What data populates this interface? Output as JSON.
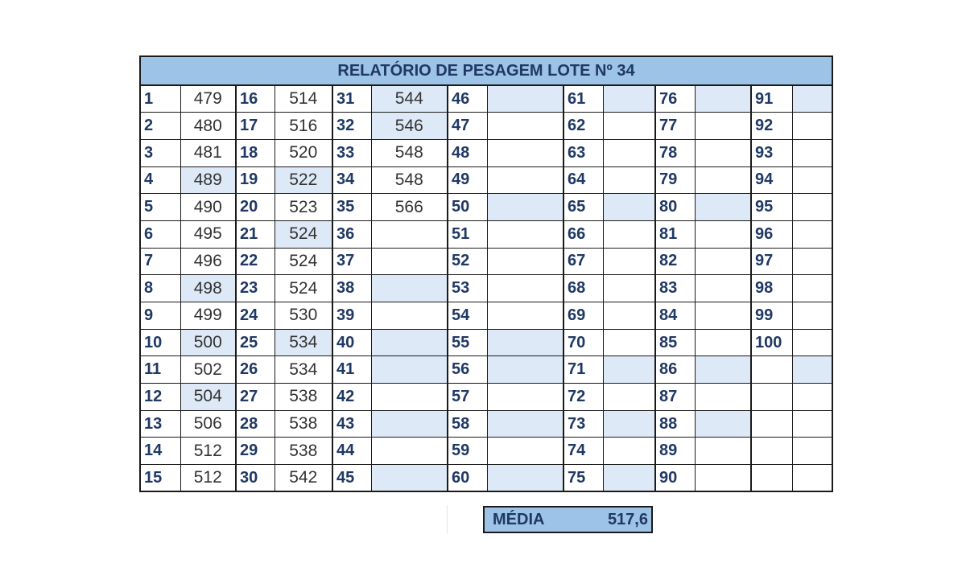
{
  "report": {
    "title": "RELATÓRIO DE PESAGEM LOTE Nº 34",
    "columns": [
      {
        "numbers": [
          "1",
          "2",
          "3",
          "4",
          "5",
          "6",
          "7",
          "8",
          "9",
          "10",
          "11",
          "12",
          "13",
          "14",
          "15"
        ],
        "values": [
          "479",
          "480",
          "481",
          "489",
          "490",
          "495",
          "496",
          "498",
          "499",
          "500",
          "502",
          "504",
          "506",
          "512",
          "512"
        ]
      },
      {
        "numbers": [
          "16",
          "17",
          "18",
          "19",
          "20",
          "21",
          "22",
          "23",
          "24",
          "25",
          "26",
          "27",
          "28",
          "29",
          "30"
        ],
        "values": [
          "514",
          "516",
          "520",
          "522",
          "523",
          "524",
          "524",
          "524",
          "530",
          "534",
          "534",
          "538",
          "538",
          "538",
          "542"
        ]
      },
      {
        "numbers": [
          "31",
          "32",
          "33",
          "34",
          "35",
          "36",
          "37",
          "38",
          "39",
          "40",
          "41",
          "42",
          "43",
          "44",
          "45"
        ],
        "values": [
          "544",
          "546",
          "548",
          "548",
          "566",
          "",
          "",
          "",
          "",
          "",
          "",
          "",
          "",
          "",
          ""
        ]
      },
      {
        "numbers": [
          "46",
          "47",
          "48",
          "49",
          "50",
          "51",
          "52",
          "53",
          "54",
          "55",
          "56",
          "57",
          "58",
          "59",
          "60"
        ],
        "values": [
          "",
          "",
          "",
          "",
          "",
          "",
          "",
          "",
          "",
          "",
          "",
          "",
          "",
          "",
          ""
        ]
      },
      {
        "numbers": [
          "61",
          "62",
          "63",
          "64",
          "65",
          "66",
          "67",
          "68",
          "69",
          "70",
          "71",
          "72",
          "73",
          "74",
          "75"
        ],
        "values": [
          "",
          "",
          "",
          "",
          "",
          "",
          "",
          "",
          "",
          "",
          "",
          "",
          "",
          "",
          ""
        ]
      },
      {
        "numbers": [
          "76",
          "77",
          "78",
          "79",
          "80",
          "81",
          "82",
          "83",
          "84",
          "85",
          "86",
          "87",
          "88",
          "89",
          "90"
        ],
        "values": [
          "",
          "",
          "",
          "",
          "",
          "",
          "",
          "",
          "",
          "",
          "",
          "",
          "",
          "",
          ""
        ]
      },
      {
        "numbers": [
          "91",
          "92",
          "93",
          "94",
          "95",
          "96",
          "97",
          "98",
          "99",
          "100",
          "",
          "",
          "",
          "",
          ""
        ],
        "values": [
          "",
          "",
          "",
          "",
          "",
          "",
          "",
          "",
          "",
          "",
          "",
          "",
          "",
          "",
          ""
        ]
      }
    ],
    "average": {
      "label": "MÉDIA",
      "value": "517,6"
    }
  },
  "colors": {
    "title_bg": "#9dc3e6",
    "shade_bg": "#dde9f6",
    "number_text": "#1f3864"
  }
}
